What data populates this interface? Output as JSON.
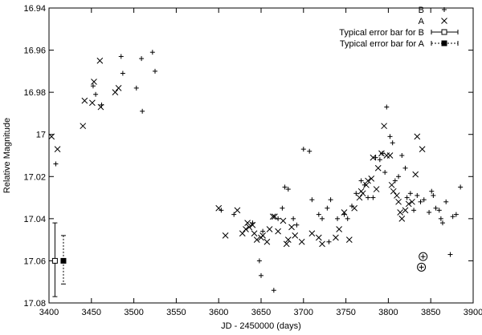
{
  "chart_data": {
    "type": "scatter",
    "xlabel": "JD - 2450000 (days)",
    "ylabel": "Relative Magnitude",
    "xlim": [
      3400,
      3900
    ],
    "ylim": [
      16.94,
      17.08
    ],
    "y_inverted": true,
    "x_ticks": [
      3400,
      3450,
      3500,
      3550,
      3600,
      3650,
      3700,
      3750,
      3800,
      3850,
      3900
    ],
    "y_ticks": [
      16.94,
      16.96,
      16.98,
      17.0,
      17.02,
      17.04,
      17.06,
      17.08
    ],
    "y_tick_labels": [
      "16.94",
      "16.96",
      "16.98",
      "17",
      "17.02",
      "17.04",
      "17.06",
      "17.08"
    ],
    "grid": false,
    "legend_position": "top-right",
    "legend": [
      {
        "label": "B",
        "marker": "plus"
      },
      {
        "label": "A",
        "marker": "cross"
      },
      {
        "label": "Typical error bar for B",
        "marker": "open-square-errorbar"
      },
      {
        "label": "Typical error bar for A",
        "marker": "filled-square-errorbar"
      }
    ],
    "series": [
      {
        "name": "B",
        "marker": "plus",
        "points": [
          [
            3408,
            17.014
          ],
          [
            3452,
            16.977
          ],
          [
            3455,
            16.981
          ],
          [
            3462,
            16.986
          ],
          [
            3485,
            16.963
          ],
          [
            3487,
            16.971
          ],
          [
            3503,
            16.978
          ],
          [
            3509,
            16.964
          ],
          [
            3510,
            16.989
          ],
          [
            3522,
            16.961
          ],
          [
            3525,
            16.97
          ],
          [
            3603,
            17.036
          ],
          [
            3618,
            17.038
          ],
          [
            3640,
            17.042
          ],
          [
            3648,
            17.06
          ],
          [
            3650,
            17.067
          ],
          [
            3652,
            17.046
          ],
          [
            3665,
            17.074
          ],
          [
            3670,
            17.04
          ],
          [
            3675,
            17.035
          ],
          [
            3678,
            17.025
          ],
          [
            3682,
            17.026
          ],
          [
            3688,
            17.04
          ],
          [
            3692,
            17.043
          ],
          [
            3700,
            17.007
          ],
          [
            3707,
            17.008
          ],
          [
            3710,
            17.031
          ],
          [
            3718,
            17.038
          ],
          [
            3722,
            17.04
          ],
          [
            3728,
            17.035
          ],
          [
            3730,
            17.051
          ],
          [
            3732,
            17.031
          ],
          [
            3740,
            17.04
          ],
          [
            3748,
            17.038
          ],
          [
            3752,
            17.04
          ],
          [
            3757,
            17.034
          ],
          [
            3762,
            17.028
          ],
          [
            3768,
            17.022
          ],
          [
            3772,
            17.024
          ],
          [
            3776,
            17.03
          ],
          [
            3782,
            17.03
          ],
          [
            3785,
            17.011
          ],
          [
            3790,
            17.012
          ],
          [
            3793,
            17.009
          ],
          [
            3796,
            17.018
          ],
          [
            3798,
            16.987
          ],
          [
            3802,
            17.001
          ],
          [
            3805,
            17.004
          ],
          [
            3808,
            17.022
          ],
          [
            3812,
            17.02
          ],
          [
            3816,
            17.01
          ],
          [
            3820,
            17.016
          ],
          [
            3822,
            17.03
          ],
          [
            3826,
            17.028
          ],
          [
            3830,
            17.036
          ],
          [
            3834,
            17.029
          ],
          [
            3838,
            17.032
          ],
          [
            3842,
            17.031
          ],
          [
            3848,
            17.037
          ],
          [
            3851,
            17.027
          ],
          [
            3853,
            17.029
          ],
          [
            3856,
            17.035
          ],
          [
            3860,
            17.036
          ],
          [
            3862,
            17.04
          ],
          [
            3864,
            17.042
          ],
          [
            3868,
            17.032
          ],
          [
            3873,
            17.057
          ],
          [
            3876,
            17.039
          ],
          [
            3880,
            17.038
          ],
          [
            3885,
            17.025
          ]
        ]
      },
      {
        "name": "A",
        "marker": "cross",
        "points": [
          [
            3403,
            17.001
          ],
          [
            3410,
            17.007
          ],
          [
            3440,
            16.996
          ],
          [
            3442,
            16.984
          ],
          [
            3451,
            16.985
          ],
          [
            3453,
            16.975
          ],
          [
            3460,
            16.965
          ],
          [
            3461,
            16.987
          ],
          [
            3478,
            16.98
          ],
          [
            3482,
            16.978
          ],
          [
            3600,
            17.035
          ],
          [
            3608,
            17.048
          ],
          [
            3622,
            17.036
          ],
          [
            3628,
            17.047
          ],
          [
            3632,
            17.045
          ],
          [
            3634,
            17.042
          ],
          [
            3636,
            17.044
          ],
          [
            3640,
            17.043
          ],
          [
            3642,
            17.047
          ],
          [
            3645,
            17.05
          ],
          [
            3650,
            17.049
          ],
          [
            3652,
            17.048
          ],
          [
            3657,
            17.051
          ],
          [
            3660,
            17.045
          ],
          [
            3664,
            17.039
          ],
          [
            3666,
            17.039
          ],
          [
            3670,
            17.046
          ],
          [
            3676,
            17.041
          ],
          [
            3680,
            17.052
          ],
          [
            3682,
            17.05
          ],
          [
            3686,
            17.044
          ],
          [
            3690,
            17.048
          ],
          [
            3698,
            17.051
          ],
          [
            3710,
            17.047
          ],
          [
            3718,
            17.049
          ],
          [
            3722,
            17.052
          ],
          [
            3738,
            17.049
          ],
          [
            3742,
            17.045
          ],
          [
            3748,
            17.037
          ],
          [
            3754,
            17.05
          ],
          [
            3760,
            17.035
          ],
          [
            3766,
            17.03
          ],
          [
            3768,
            17.027
          ],
          [
            3770,
            17.028
          ],
          [
            3774,
            17.024
          ],
          [
            3776,
            17.022
          ],
          [
            3780,
            17.021
          ],
          [
            3782,
            17.011
          ],
          [
            3786,
            17.026
          ],
          [
            3788,
            17.016
          ],
          [
            3792,
            17.009
          ],
          [
            3795,
            16.996
          ],
          [
            3798,
            17.01
          ],
          [
            3802,
            17.01
          ],
          [
            3804,
            17.024
          ],
          [
            3806,
            17.027
          ],
          [
            3810,
            17.029
          ],
          [
            3812,
            17.032
          ],
          [
            3814,
            17.037
          ],
          [
            3816,
            17.04
          ],
          [
            3820,
            17.036
          ],
          [
            3824,
            17.033
          ],
          [
            3828,
            17.032
          ],
          [
            3832,
            17.019
          ],
          [
            3834,
            17.001
          ],
          [
            3840,
            17.007
          ]
        ]
      }
    ],
    "error_bars": [
      {
        "name": "Typical error bar for B",
        "marker": "open-square",
        "x": 3407,
        "y": 17.06,
        "y_low": 17.077,
        "y_high": 17.042
      },
      {
        "name": "Typical error bar for A",
        "marker": "filled-square",
        "x": 3417,
        "y": 17.06,
        "y_low": 17.071,
        "y_high": 17.048
      }
    ],
    "highlighted_points": [
      {
        "x": 3841,
        "y": 17.058,
        "marker": "circled-plus"
      },
      {
        "x": 3839,
        "y": 17.063,
        "marker": "circled-plus"
      }
    ]
  }
}
